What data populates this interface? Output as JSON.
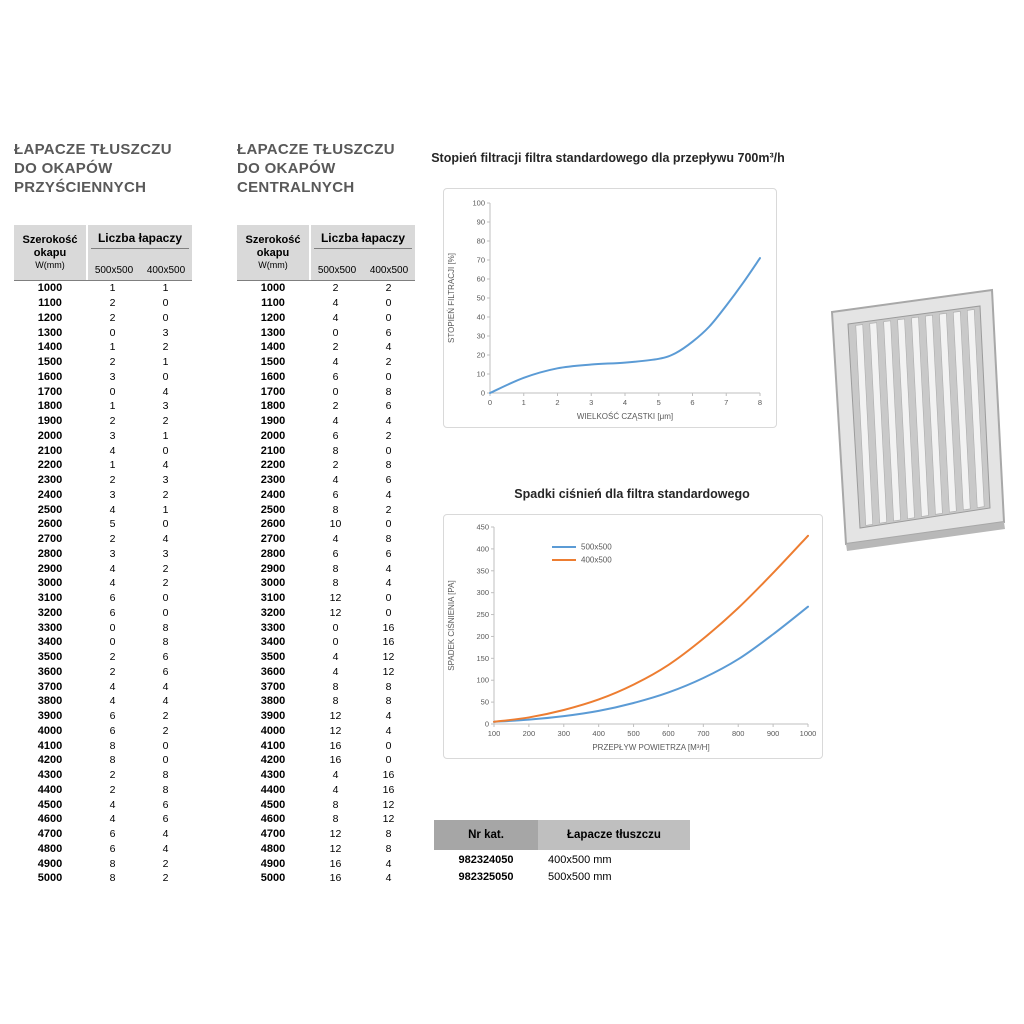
{
  "left_table": {
    "title_lines": [
      "ŁAPACZE TŁUSZCZU",
      "DO OKAPÓW",
      "PRZYŚCIENNYCH"
    ],
    "header": {
      "col_width_1": "Szerokość",
      "col_width_2": "okapu",
      "col_width_3": "W(mm)",
      "count_label": "Liczba łapaczy",
      "sub_500": "500x500",
      "sub_400": "400x500"
    },
    "rows": [
      [
        1000,
        1,
        1
      ],
      [
        1100,
        2,
        0
      ],
      [
        1200,
        2,
        0
      ],
      [
        1300,
        0,
        3
      ],
      [
        1400,
        1,
        2
      ],
      [
        1500,
        2,
        1
      ],
      [
        1600,
        3,
        0
      ],
      [
        1700,
        0,
        4
      ],
      [
        1800,
        1,
        3
      ],
      [
        1900,
        2,
        2
      ],
      [
        2000,
        3,
        1
      ],
      [
        2100,
        4,
        0
      ],
      [
        2200,
        1,
        4
      ],
      [
        2300,
        2,
        3
      ],
      [
        2400,
        3,
        2
      ],
      [
        2500,
        4,
        1
      ],
      [
        2600,
        5,
        0
      ],
      [
        2700,
        2,
        4
      ],
      [
        2800,
        3,
        3
      ],
      [
        2900,
        4,
        2
      ],
      [
        3000,
        4,
        2
      ],
      [
        3100,
        6,
        0
      ],
      [
        3200,
        6,
        0
      ],
      [
        3300,
        0,
        8
      ],
      [
        3400,
        0,
        8
      ],
      [
        3500,
        2,
        6
      ],
      [
        3600,
        2,
        6
      ],
      [
        3700,
        4,
        4
      ],
      [
        3800,
        4,
        4
      ],
      [
        3900,
        6,
        2
      ],
      [
        4000,
        6,
        2
      ],
      [
        4100,
        8,
        0
      ],
      [
        4200,
        8,
        0
      ],
      [
        4300,
        2,
        8
      ],
      [
        4400,
        2,
        8
      ],
      [
        4500,
        4,
        6
      ],
      [
        4600,
        4,
        6
      ],
      [
        4700,
        6,
        4
      ],
      [
        4800,
        6,
        4
      ],
      [
        4900,
        8,
        2
      ],
      [
        5000,
        8,
        2
      ]
    ]
  },
  "center_table": {
    "title_lines": [
      "ŁAPACZE TŁUSZCZU",
      "DO OKAPÓW",
      "CENTRALNYCH"
    ],
    "header": {
      "col_width_1": "Szerokość",
      "col_width_2": "okapu",
      "col_width_3": "W(mm)",
      "count_label": "Liczba łapaczy",
      "sub_500": "500x500",
      "sub_400": "400x500"
    },
    "rows": [
      [
        1000,
        2,
        2
      ],
      [
        1100,
        4,
        0
      ],
      [
        1200,
        4,
        0
      ],
      [
        1300,
        0,
        6
      ],
      [
        1400,
        2,
        4
      ],
      [
        1500,
        4,
        2
      ],
      [
        1600,
        6,
        0
      ],
      [
        1700,
        0,
        8
      ],
      [
        1800,
        2,
        6
      ],
      [
        1900,
        4,
        4
      ],
      [
        2000,
        6,
        2
      ],
      [
        2100,
        8,
        0
      ],
      [
        2200,
        2,
        8
      ],
      [
        2300,
        4,
        6
      ],
      [
        2400,
        6,
        4
      ],
      [
        2500,
        8,
        2
      ],
      [
        2600,
        10,
        0
      ],
      [
        2700,
        4,
        8
      ],
      [
        2800,
        6,
        6
      ],
      [
        2900,
        8,
        4
      ],
      [
        3000,
        8,
        4
      ],
      [
        3100,
        12,
        0
      ],
      [
        3200,
        12,
        0
      ],
      [
        3300,
        0,
        16
      ],
      [
        3400,
        0,
        16
      ],
      [
        3500,
        4,
        12
      ],
      [
        3600,
        4,
        12
      ],
      [
        3700,
        8,
        8
      ],
      [
        3800,
        8,
        8
      ],
      [
        3900,
        12,
        4
      ],
      [
        4000,
        12,
        4
      ],
      [
        4100,
        16,
        0
      ],
      [
        4200,
        16,
        0
      ],
      [
        4300,
        4,
        16
      ],
      [
        4400,
        4,
        16
      ],
      [
        4500,
        8,
        12
      ],
      [
        4600,
        8,
        12
      ],
      [
        4700,
        12,
        8
      ],
      [
        4800,
        12,
        8
      ],
      [
        4900,
        16,
        4
      ],
      [
        5000,
        16,
        4
      ]
    ]
  },
  "catalog_table": {
    "header_nr": "Nr kat.",
    "header_name": "Łapacze tłuszczu",
    "rows": [
      [
        "982324050",
        "400x500 mm"
      ],
      [
        "982325050",
        "500x500 mm"
      ]
    ]
  },
  "chart_data": [
    {
      "type": "line",
      "title": "Stopień filtracji filtra standardowego dla przepływu 700m³/h",
      "xlabel": "WIELKOŚĆ CZĄSTKI [μm]",
      "ylabel": "STOPIEŃ FILTRACJI [%]",
      "xlim": [
        0,
        8
      ],
      "ylim": [
        0,
        100
      ],
      "xticks": [
        0,
        1,
        2,
        3,
        4,
        5,
        6,
        7,
        8
      ],
      "yticks": [
        0,
        10,
        20,
        30,
        40,
        50,
        60,
        70,
        80,
        90,
        100
      ],
      "grid": false,
      "legend_position": "none",
      "series": [
        {
          "name": "stopień filtracji",
          "color": "#5b9bd5",
          "x": [
            0,
            1,
            2,
            3,
            4,
            5,
            5.5,
            6,
            6.5,
            7,
            7.5,
            8
          ],
          "y": [
            0,
            8,
            13,
            15,
            16,
            18,
            21,
            27,
            35,
            46,
            58,
            71
          ]
        }
      ]
    },
    {
      "type": "line",
      "title": "Spadki ciśnień dla filtra standardowego",
      "xlabel": "PRZEPŁYW POWIETRZA [M³/H]",
      "ylabel": "SPADEK CIŚNIENIA [PA]",
      "xlim": [
        100,
        1000
      ],
      "ylim": [
        0,
        450
      ],
      "xticks": [
        100,
        200,
        300,
        400,
        500,
        600,
        700,
        800,
        900,
        1000
      ],
      "yticks": [
        0,
        50,
        100,
        150,
        200,
        250,
        300,
        350,
        400,
        450
      ],
      "grid": false,
      "legend_position": "top-left",
      "series": [
        {
          "name": "500x500",
          "color": "#5b9bd5",
          "x": [
            100,
            200,
            300,
            400,
            500,
            600,
            700,
            800,
            900,
            1000
          ],
          "y": [
            5,
            10,
            18,
            30,
            48,
            72,
            105,
            148,
            205,
            268
          ]
        },
        {
          "name": "400x500",
          "color": "#ed7d31",
          "x": [
            100,
            200,
            300,
            400,
            500,
            600,
            700,
            800,
            900,
            1000
          ],
          "y": [
            5,
            15,
            32,
            56,
            90,
            135,
            195,
            265,
            345,
            430
          ]
        }
      ]
    }
  ]
}
